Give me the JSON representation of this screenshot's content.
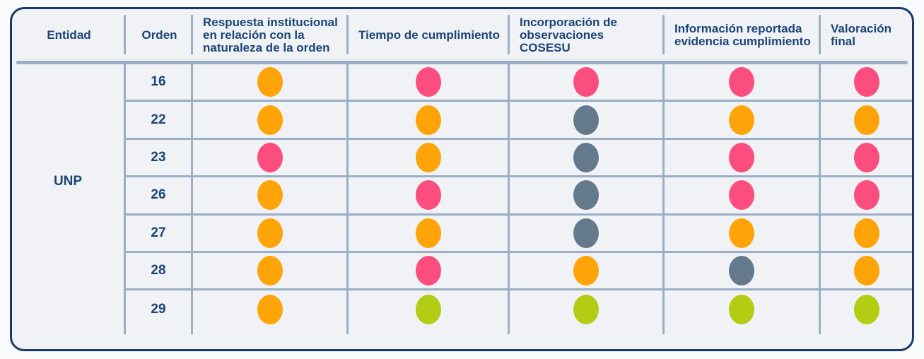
{
  "chart_data": {
    "type": "table",
    "columns": [
      "Entidad",
      "Orden",
      "Respuesta institucional en relación con la naturaleza de la orden",
      "Tiempo de cumplimiento",
      "Incorporación de observaciones COSESU",
      "Información reportada evidencia cumplimiento",
      "Valoración final"
    ],
    "entity": "UNP",
    "rows": [
      {
        "orden": "16",
        "statuses": [
          "orange",
          "pink",
          "pink",
          "pink",
          "pink"
        ]
      },
      {
        "orden": "22",
        "statuses": [
          "orange",
          "orange",
          "gray",
          "orange",
          "orange"
        ]
      },
      {
        "orden": "23",
        "statuses": [
          "pink",
          "orange",
          "gray",
          "pink",
          "pink"
        ]
      },
      {
        "orden": "26",
        "statuses": [
          "orange",
          "pink",
          "gray",
          "pink",
          "pink"
        ]
      },
      {
        "orden": "27",
        "statuses": [
          "orange",
          "orange",
          "gray",
          "orange",
          "orange"
        ]
      },
      {
        "orden": "28",
        "statuses": [
          "orange",
          "pink",
          "orange",
          "gray",
          "orange"
        ]
      },
      {
        "orden": "29",
        "statuses": [
          "orange",
          "green",
          "green",
          "green",
          "green"
        ]
      }
    ],
    "status_colors": {
      "orange": "#FFA408",
      "pink": "#FB4D7E",
      "gray": "#64798C",
      "green": "#B3CC14"
    },
    "layout": {
      "grid_color": "#9AAEC5",
      "border_color": "#1A3A6B",
      "text_color": "#1B4577",
      "background_color": "#F0F2F5"
    }
  }
}
